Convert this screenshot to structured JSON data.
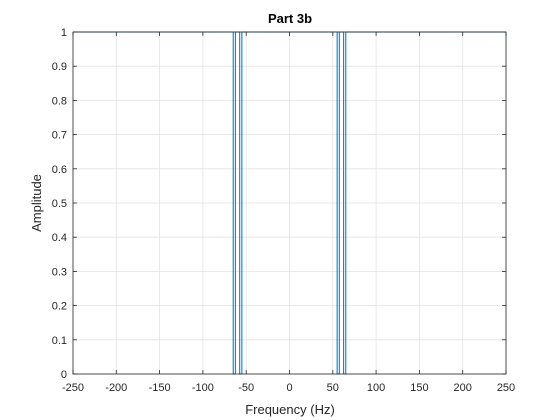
{
  "chart_data": {
    "type": "line",
    "title": "Part 3b",
    "xlabel": "Frequency (Hz)",
    "ylabel": "Amplitude",
    "xlim": [
      -250,
      250
    ],
    "ylim": [
      0,
      1
    ],
    "xticks": [
      -250,
      -200,
      -150,
      -100,
      -50,
      0,
      50,
      100,
      150,
      200,
      250
    ],
    "yticks": [
      0,
      0.1,
      0.2,
      0.3,
      0.4,
      0.5,
      0.6,
      0.7,
      0.8,
      0.9,
      1
    ],
    "xtick_labels": [
      "-250",
      "-200",
      "-150",
      "-100",
      "-50",
      "0",
      "50",
      "100",
      "150",
      "200",
      "250"
    ],
    "ytick_labels": [
      "0",
      "0.1",
      "0.2",
      "0.3",
      "0.4",
      "0.5",
      "0.6",
      "0.7",
      "0.8",
      "0.9",
      "1"
    ],
    "grid": true,
    "line_color": "#0072BD",
    "series": [
      {
        "x": [
          -250,
          -65,
          -65,
          -62.5,
          -62.5,
          -57.5,
          -57.5,
          -55,
          -55,
          55,
          55,
          57.5,
          57.5,
          62.5,
          62.5,
          65,
          65,
          250
        ],
        "y": [
          1,
          1,
          0,
          0,
          1,
          1,
          0,
          0,
          1,
          1,
          0,
          0,
          1,
          1,
          0,
          0,
          1,
          1
        ]
      }
    ]
  }
}
